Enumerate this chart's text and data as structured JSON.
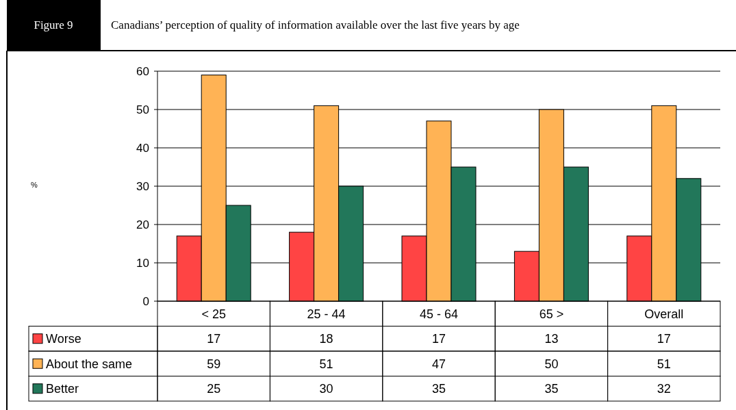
{
  "chart_data": {
    "type": "bar",
    "title": "Canadians’ perception of quality of information available over the last five years by age",
    "annotations": [
      "Figure 9",
      "%"
    ],
    "categories": [
      "< 25",
      "25 - 44",
      "45 - 64",
      "65 >",
      "Overall"
    ],
    "series": [
      {
        "name": "Worse",
        "color": "#ff4444",
        "values": [
          17,
          18,
          17,
          13,
          17
        ]
      },
      {
        "name": "About the same",
        "color": "#ffb355",
        "values": [
          59,
          51,
          47,
          50,
          51
        ]
      },
      {
        "name": "Better",
        "color": "#22775a",
        "values": [
          25,
          30,
          35,
          35,
          32
        ]
      }
    ],
    "ylim": [
      0,
      60
    ],
    "yticks": [
      0,
      10,
      20,
      30,
      40,
      50,
      60
    ],
    "grid": "y",
    "legend": "bottom left",
    "data_labels": true
  }
}
